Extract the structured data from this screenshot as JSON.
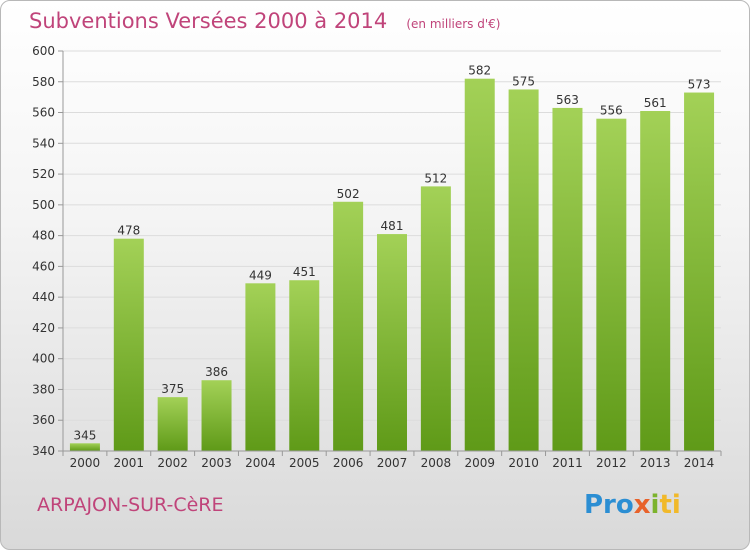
{
  "chart_data": {
    "type": "bar",
    "title": "Subventions Versées 2000 à 2014",
    "subtitle": "(en milliers d'€)",
    "categories": [
      "2000",
      "2001",
      "2002",
      "2003",
      "2004",
      "2005",
      "2006",
      "2007",
      "2008",
      "2009",
      "2010",
      "2011",
      "2012",
      "2013",
      "2014"
    ],
    "values": [
      345,
      478,
      375,
      386,
      449,
      451,
      502,
      481,
      512,
      582,
      575,
      563,
      556,
      561,
      573
    ],
    "ylim": [
      340,
      600
    ],
    "yticks": [
      340,
      360,
      380,
      400,
      420,
      440,
      460,
      480,
      500,
      520,
      540,
      560,
      580,
      600
    ],
    "grid": true,
    "bar_color_top": "#a3d157",
    "bar_color_bottom": "#5f9a18"
  },
  "footer": {
    "place": "ARPAJON-SUR-CèRE",
    "logo_parts": [
      "Pro",
      "x",
      "i",
      "ti"
    ]
  }
}
